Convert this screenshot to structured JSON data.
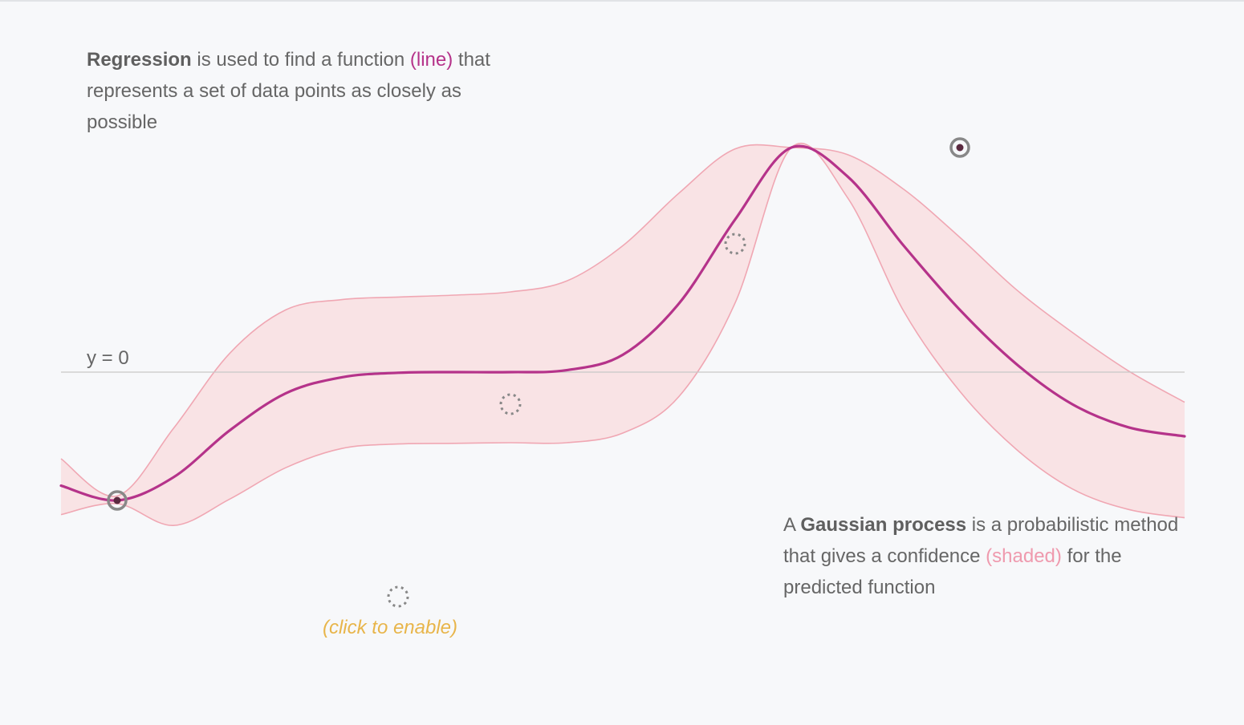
{
  "text": {
    "regression": {
      "term": "Regression",
      "part1": " is used to find a function ",
      "line_word": "(line)",
      "part2": " that represents a set of data points as closely as possible"
    },
    "gaussian": {
      "lead": "A ",
      "term": "Gaussian process",
      "part1": " is a probabilistic method that gives a confidence ",
      "shaded_word": "(shaded)",
      "part2": " for the predicted function"
    },
    "zero_label": "y = 0",
    "enable_hint": "(click to enable)"
  },
  "colors": {
    "mean_line": "#b5338a",
    "band_fill": "#f9e3e5",
    "band_edge": "#f0a7b3",
    "baseline": "#c8c8c8",
    "point_ring": "#888888",
    "point_core": "#5a2a40",
    "slot_ring": "#888888",
    "hint": "#e8b54a",
    "background": "#f7f8fa"
  },
  "chart_data": {
    "type": "line",
    "xlim": [
      0,
      1
    ],
    "ylim": [
      -2.5,
      4.5
    ],
    "series": [
      {
        "role": "mean",
        "x": [
          0.0,
          0.05,
          0.1,
          0.15,
          0.2,
          0.25,
          0.3,
          0.35,
          0.4,
          0.45,
          0.5,
          0.55,
          0.6,
          0.65,
          0.7,
          0.75,
          0.8,
          0.85,
          0.9,
          0.95,
          1.0
        ],
        "y": [
          -1.77,
          -2.0,
          -1.64,
          -0.91,
          -0.33,
          -0.08,
          -0.01,
          0.0,
          0.0,
          0.03,
          0.27,
          1.07,
          2.38,
          3.5,
          3.05,
          1.97,
          0.97,
          0.13,
          -0.5,
          -0.86,
          -1.0
        ]
      },
      {
        "role": "upper",
        "x": [
          0.0,
          0.05,
          0.1,
          0.15,
          0.2,
          0.25,
          0.3,
          0.35,
          0.4,
          0.45,
          0.5,
          0.55,
          0.6,
          0.65,
          0.7,
          0.75,
          0.8,
          0.85,
          0.9,
          0.95,
          1.0
        ],
        "y": [
          -1.35,
          -1.93,
          -0.88,
          0.29,
          0.97,
          1.13,
          1.17,
          1.2,
          1.25,
          1.42,
          1.97,
          2.79,
          3.48,
          3.5,
          3.39,
          2.85,
          2.1,
          1.29,
          0.62,
          0.02,
          -0.47
        ]
      },
      {
        "role": "lower",
        "x": [
          0.0,
          0.05,
          0.1,
          0.15,
          0.2,
          0.25,
          0.3,
          0.35,
          0.4,
          0.45,
          0.5,
          0.55,
          0.6,
          0.65,
          0.7,
          0.75,
          0.8,
          0.85,
          0.9,
          0.95,
          1.0
        ],
        "y": [
          -2.22,
          -2.05,
          -2.39,
          -1.98,
          -1.49,
          -1.19,
          -1.12,
          -1.11,
          -1.1,
          -1.1,
          -0.95,
          -0.38,
          1.08,
          3.5,
          2.72,
          0.95,
          -0.3,
          -1.2,
          -1.82,
          -2.14,
          -2.27
        ]
      }
    ],
    "points": [
      {
        "x": 0.05,
        "y": -2.0,
        "enabled": true
      },
      {
        "x": 0.3,
        "y": -3.5,
        "enabled": false
      },
      {
        "x": 0.4,
        "y": -0.5,
        "enabled": false
      },
      {
        "x": 0.6,
        "y": 2.0,
        "enabled": false
      },
      {
        "x": 0.8,
        "y": 3.5,
        "enabled": true
      }
    ],
    "baseline_y": 0
  }
}
